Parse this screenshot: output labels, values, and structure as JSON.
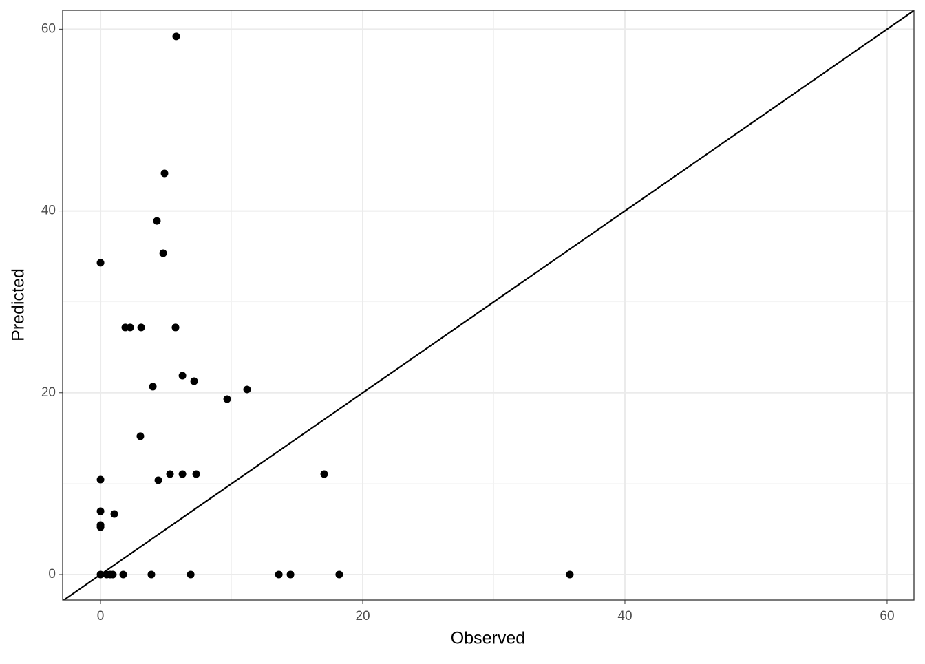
{
  "chart_data": {
    "type": "scatter",
    "x_label": "Observed",
    "y_label": "Predicted",
    "x": [
      5.77,
      4.88,
      4.3,
      0,
      4.78,
      1.89,
      2.26,
      3.1,
      5.72,
      3.99,
      6.25,
      7.14,
      9.66,
      11.18,
      3.04,
      5.3,
      6.25,
      7.3,
      17.06,
      4.41,
      0,
      0,
      1.05,
      0,
      0,
      0,
      0.47,
      0.73,
      0.94,
      1.73,
      3.88,
      6.88,
      13.6,
      14.49,
      18.21,
      35.8
    ],
    "values": [
      59.2,
      44.13,
      38.9,
      34.3,
      35.35,
      27.18,
      27.18,
      27.18,
      27.18,
      20.67,
      21.88,
      21.27,
      19.3,
      20.36,
      15.22,
      11.05,
      11.05,
      11.05,
      11.05,
      10.37,
      10.45,
      6.96,
      6.66,
      5.45,
      5.22,
      0,
      0,
      0,
      0,
      0,
      0,
      0,
      0,
      0,
      0,
      0
    ],
    "color": "#000000",
    "xlim": [
      -2.89,
      62.05
    ],
    "ylim": [
      -2.8,
      62.07
    ],
    "xticks": [
      0,
      20,
      40,
      60
    ],
    "yticks": [
      0,
      20,
      40,
      60
    ],
    "minor_xticks": [
      10,
      30,
      50
    ],
    "minor_yticks": [
      10,
      30,
      50
    ],
    "grid": true,
    "reference_line": "y=x"
  }
}
